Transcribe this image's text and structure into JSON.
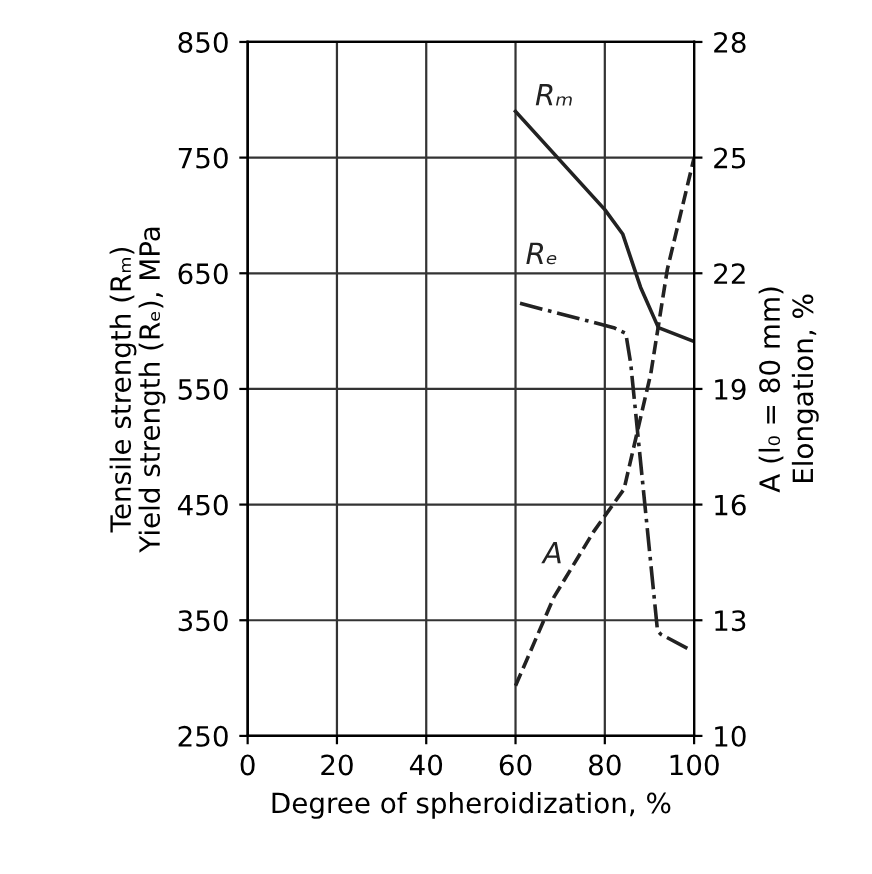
{
  "chart_data": {
    "type": "line",
    "xlabel": "Degree of spheroidization, %",
    "ylabel": "Tensile strength (Rₘ)\nYield strength (Rₑ), MPa",
    "y2label": "A (l₀ = 80 mm)\nElongation, %",
    "xlim": [
      0,
      100
    ],
    "xticks": [
      0,
      20,
      40,
      60,
      80,
      100
    ],
    "ylim": [
      250,
      850
    ],
    "yticks": [
      250,
      350,
      450,
      550,
      650,
      750,
      850
    ],
    "y2lim": [
      10,
      28
    ],
    "y2ticks": [
      10,
      13,
      16,
      19,
      22,
      25,
      28
    ],
    "grid": true,
    "legend": false,
    "series": [
      {
        "name": "Rₘ",
        "color": "#222222",
        "line_style": "solid",
        "x": [
          60,
          80,
          84,
          88,
          92,
          100
        ],
        "values": [
          790,
          705,
          684,
          638,
          603,
          591
        ]
      },
      {
        "name": "Rₑ",
        "color": "#222222",
        "line_style": "dashdot",
        "x": [
          61,
          82,
          84.7,
          85.8,
          91.8,
          92.5,
          99.3
        ],
        "values": [
          624,
          603,
          598,
          572,
          341,
          338,
          324
        ]
      },
      {
        "name": "A",
        "color": "#222222",
        "line_style": "dashed",
        "axis": "y2",
        "x": [
          60,
          68.6,
          77.5,
          84.3,
          90.3,
          94,
          100
        ],
        "values": [
          11.3,
          13.6,
          15.3,
          16.4,
          19.4,
          22.1,
          25
        ]
      }
    ]
  }
}
